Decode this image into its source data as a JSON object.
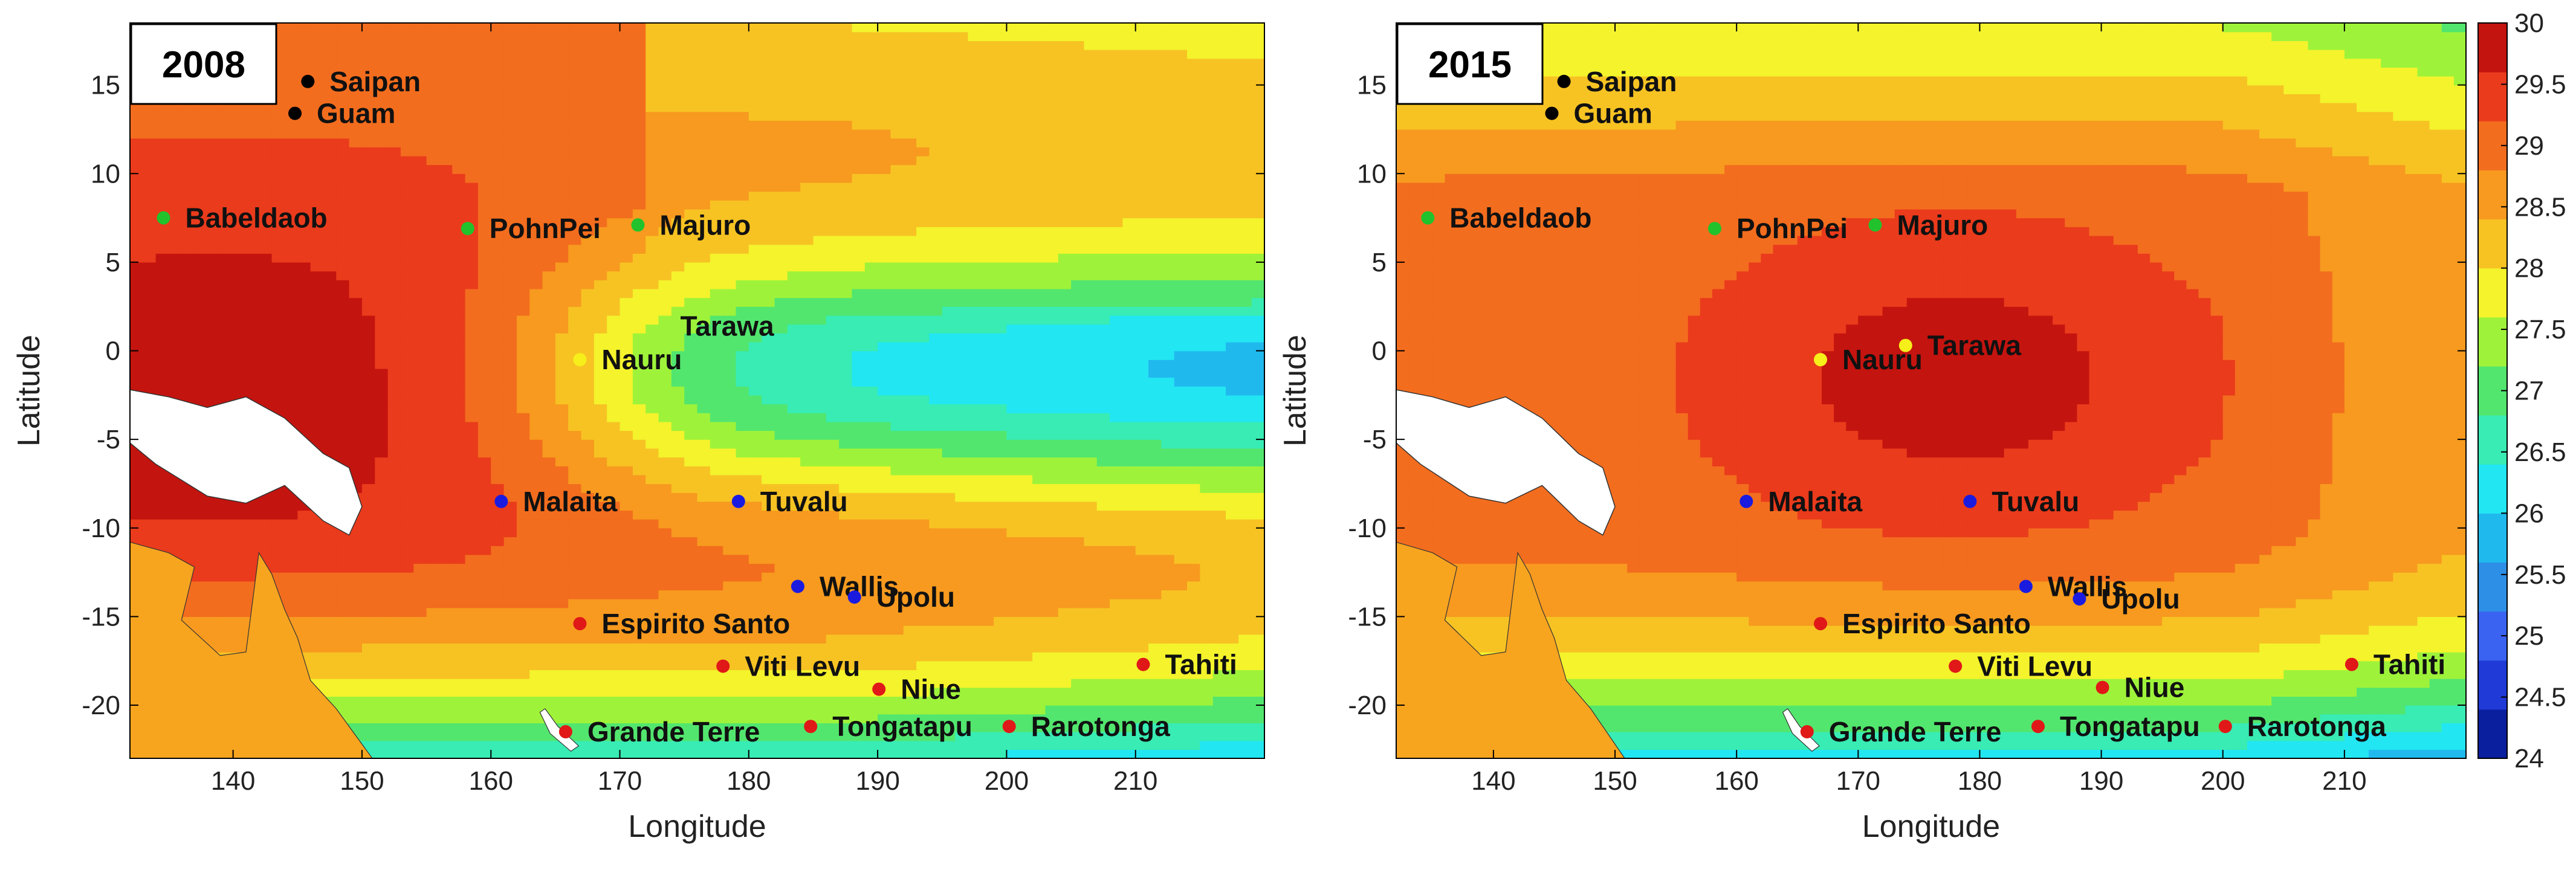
{
  "colors": {
    "colorscale": [
      "#0a1f9e",
      "#1f3ad6",
      "#3a63f2",
      "#2d8fe6",
      "#20b9ee",
      "#22e6f2",
      "#38ecb4",
      "#52e66e",
      "#9ef33a",
      "#f4f32c",
      "#f7c323",
      "#f79a1f",
      "#f36d1e",
      "#ea3b1c",
      "#c4140f"
    ],
    "land": "#ffffff",
    "dot_black": "#000000",
    "dot_green": "#22c22c",
    "dot_yellow": "#f6ef1a",
    "dot_blue": "#1b1be0",
    "dot_red": "#e01818"
  },
  "chart_data": [
    {
      "type": "heatmap",
      "panel_label": "2008",
      "xlabel": "Longitude",
      "ylabel": "Latitude",
      "xlim": [
        132,
        220
      ],
      "ylim": [
        -23,
        18.5
      ],
      "xticks": [
        140,
        150,
        160,
        170,
        180,
        190,
        200,
        210
      ],
      "yticks": [
        15,
        10,
        5,
        0,
        -5,
        -10,
        -15,
        -20
      ],
      "sites": [
        {
          "name": "Saipan",
          "lon": 145.8,
          "lat": 15.2,
          "color": "black"
        },
        {
          "name": "Guam",
          "lon": 144.8,
          "lat": 13.4,
          "color": "black"
        },
        {
          "name": "Babeldaob",
          "lon": 134.6,
          "lat": 7.5,
          "color": "green"
        },
        {
          "name": "PohnPei",
          "lon": 158.2,
          "lat": 6.9,
          "color": "green"
        },
        {
          "name": "Majuro",
          "lon": 171.4,
          "lat": 7.1,
          "color": "green"
        },
        {
          "name": "Tarawa",
          "lon": 173.0,
          "lat": 1.4,
          "color": "none"
        },
        {
          "name": "Nauru",
          "lon": 166.9,
          "lat": -0.5,
          "color": "yellow"
        },
        {
          "name": "Malaita",
          "lon": 160.8,
          "lat": -8.5,
          "color": "blue"
        },
        {
          "name": "Tuvalu",
          "lon": 179.2,
          "lat": -8.5,
          "color": "blue"
        },
        {
          "name": "Wallis",
          "lon": 183.8,
          "lat": -13.3,
          "color": "blue"
        },
        {
          "name": "Upolu",
          "lon": 188.2,
          "lat": -13.9,
          "color": "blue"
        },
        {
          "name": "Espirito Santo",
          "lon": 166.9,
          "lat": -15.4,
          "color": "red"
        },
        {
          "name": "Viti Levu",
          "lon": 178.0,
          "lat": -17.8,
          "color": "red"
        },
        {
          "name": "Niue",
          "lon": 190.1,
          "lat": -19.1,
          "color": "red"
        },
        {
          "name": "Tahiti",
          "lon": 210.6,
          "lat": -17.7,
          "color": "red"
        },
        {
          "name": "Grande Terre",
          "lon": 165.8,
          "lat": -21.5,
          "color": "red"
        },
        {
          "name": "Tongatapu",
          "lon": 184.8,
          "lat": -21.2,
          "color": "red"
        },
        {
          "name": "Rarotonga",
          "lon": 200.2,
          "lat": -21.2,
          "color": "red"
        }
      ]
    },
    {
      "type": "heatmap",
      "panel_label": "2015",
      "xlabel": "Longitude",
      "ylabel": "Latitude",
      "xlim": [
        132,
        220
      ],
      "ylim": [
        -23,
        18.5
      ],
      "xticks": [
        140,
        150,
        160,
        170,
        180,
        190,
        200,
        210
      ],
      "yticks": [
        15,
        10,
        5,
        0,
        -5,
        -10,
        -15,
        -20
      ],
      "colorbar": {
        "min": 24,
        "max": 30,
        "ticks": [
          30,
          29.5,
          29,
          28.5,
          28,
          27.5,
          27,
          26.5,
          26,
          25.5,
          25,
          24.5,
          24
        ]
      },
      "sites": [
        {
          "name": "Saipan",
          "lon": 145.8,
          "lat": 15.2,
          "color": "black"
        },
        {
          "name": "Guam",
          "lon": 144.8,
          "lat": 13.4,
          "color": "black"
        },
        {
          "name": "Babeldaob",
          "lon": 134.6,
          "lat": 7.5,
          "color": "green"
        },
        {
          "name": "PohnPei",
          "lon": 158.2,
          "lat": 6.9,
          "color": "green"
        },
        {
          "name": "Majuro",
          "lon": 171.4,
          "lat": 7.1,
          "color": "green"
        },
        {
          "name": "Tarawa",
          "lon": 173.9,
          "lat": 0.3,
          "color": "yellow"
        },
        {
          "name": "Nauru",
          "lon": 166.9,
          "lat": -0.5,
          "color": "yellow"
        },
        {
          "name": "Malaita",
          "lon": 160.8,
          "lat": -8.5,
          "color": "blue"
        },
        {
          "name": "Tuvalu",
          "lon": 179.2,
          "lat": -8.5,
          "color": "blue"
        },
        {
          "name": "Wallis",
          "lon": 183.8,
          "lat": -13.3,
          "color": "blue"
        },
        {
          "name": "Upolu",
          "lon": 188.2,
          "lat": -14.0,
          "color": "blue"
        },
        {
          "name": "Espirito Santo",
          "lon": 166.9,
          "lat": -15.4,
          "color": "red"
        },
        {
          "name": "Viti Levu",
          "lon": 178.0,
          "lat": -17.8,
          "color": "red"
        },
        {
          "name": "Niue",
          "lon": 190.1,
          "lat": -19.0,
          "color": "red"
        },
        {
          "name": "Tahiti",
          "lon": 210.6,
          "lat": -17.7,
          "color": "red"
        },
        {
          "name": "Grande Terre",
          "lon": 165.8,
          "lat": -21.5,
          "color": "red"
        },
        {
          "name": "Tongatapu",
          "lon": 184.8,
          "lat": -21.2,
          "color": "red"
        },
        {
          "name": "Rarotonga",
          "lon": 200.2,
          "lat": -21.2,
          "color": "red"
        }
      ]
    }
  ]
}
